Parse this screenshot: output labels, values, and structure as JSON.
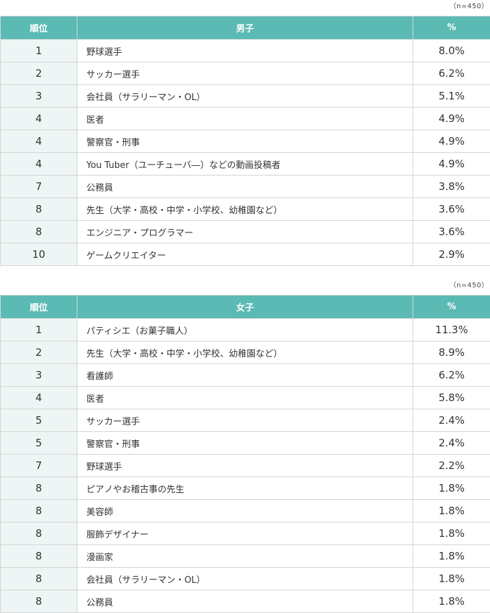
{
  "boys": {
    "sample_note": "（n=450）",
    "headers": {
      "rank": "順位",
      "job": "男子",
      "pct": "%"
    },
    "rows": [
      {
        "rank": "1",
        "job": "野球選手",
        "pct": "8.0%"
      },
      {
        "rank": "2",
        "job": "サッカー選手",
        "pct": "6.2%"
      },
      {
        "rank": "3",
        "job": "会社員（サラリーマン・OL）",
        "pct": "5.1%"
      },
      {
        "rank": "4",
        "job": "医者",
        "pct": "4.9%"
      },
      {
        "rank": "4",
        "job": "警察官・刑事",
        "pct": "4.9%"
      },
      {
        "rank": "4",
        "job": "You Tuber（ユーチューバ―）などの動画投稿者",
        "pct": "4.9%"
      },
      {
        "rank": "7",
        "job": "公務員",
        "pct": "3.8%"
      },
      {
        "rank": "8",
        "job": "先生（大学・高校・中学・小学校、幼稚園など）",
        "pct": "3.6%"
      },
      {
        "rank": "8",
        "job": "エンジニア・プログラマー",
        "pct": "3.6%"
      },
      {
        "rank": "10",
        "job": "ゲームクリエイター",
        "pct": "2.9%"
      }
    ]
  },
  "girls": {
    "sample_note": "（n=450）",
    "headers": {
      "rank": "順位",
      "job": "女子",
      "pct": "%"
    },
    "rows": [
      {
        "rank": "1",
        "job": "パティシエ（お菓子職人）",
        "pct": "11.3%"
      },
      {
        "rank": "2",
        "job": "先生（大学・高校・中学・小学校、幼稚園など）",
        "pct": "8.9%"
      },
      {
        "rank": "3",
        "job": "看護師",
        "pct": "6.2%"
      },
      {
        "rank": "4",
        "job": "医者",
        "pct": "5.8%"
      },
      {
        "rank": "5",
        "job": "サッカー選手",
        "pct": "2.4%"
      },
      {
        "rank": "5",
        "job": "警察官・刑事",
        "pct": "2.4%"
      },
      {
        "rank": "7",
        "job": "野球選手",
        "pct": "2.2%"
      },
      {
        "rank": "8",
        "job": "ピアノやお稽古事の先生",
        "pct": "1.8%"
      },
      {
        "rank": "8",
        "job": "美容師",
        "pct": "1.8%"
      },
      {
        "rank": "8",
        "job": "服飾デザイナー",
        "pct": "1.8%"
      },
      {
        "rank": "8",
        "job": "漫画家",
        "pct": "1.8%"
      },
      {
        "rank": "8",
        "job": "会社員（サラリーマン・OL）",
        "pct": "1.8%"
      },
      {
        "rank": "8",
        "job": "公務員",
        "pct": "1.8%"
      }
    ]
  }
}
